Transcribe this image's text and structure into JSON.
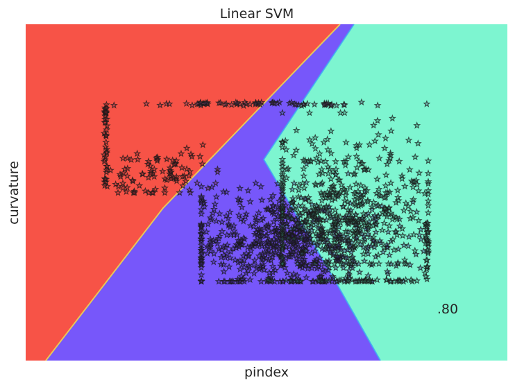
{
  "chart_data": {
    "type": "scatter",
    "title": "Linear SVM",
    "xlabel": "pindex",
    "ylabel": "curvature",
    "annotation": ".80",
    "grid": false,
    "x_ticks_shown": false,
    "y_ticks_shown": false,
    "marker": "star",
    "marker_edge_color": "#1a1a1a",
    "marker_alpha": 0.75,
    "decision_regions": [
      {
        "class": 0,
        "color": "#f75347"
      },
      {
        "class": 1,
        "color": "#7757fa"
      },
      {
        "class": 2,
        "color": "#7df5d0"
      }
    ],
    "boundaries_note": "class 0 / class 1 boundary runs from bottom-left to top-middle; class 1 / class 2 boundary runs from top-middle to bottom-middle",
    "point_groups": [
      {
        "description": "top row at y=1.0",
        "x_range": [
          0.0,
          1.0
        ],
        "y_range": [
          0.99,
          1.01
        ],
        "class": "mixed"
      },
      {
        "description": "left edge column",
        "x_range": [
          0.0,
          0.01
        ],
        "y_range": [
          0.52,
          1.0
        ],
        "class": 0
      },
      {
        "description": "left cluster",
        "x_range": [
          0.02,
          0.35
        ],
        "y_range": [
          0.5,
          0.9
        ],
        "class": 0
      },
      {
        "description": "central dense cluster",
        "x_range": [
          0.3,
          1.0
        ],
        "y_range": [
          0.0,
          0.75
        ],
        "class": 1
      },
      {
        "description": "right cluster",
        "x_range": [
          0.55,
          1.0
        ],
        "y_range": [
          0.1,
          0.95
        ],
        "class": 2
      },
      {
        "description": "bottom edge row",
        "x_range": [
          0.5,
          1.0
        ],
        "y_range": [
          0.0,
          0.01
        ],
        "class": 2
      },
      {
        "description": "right edge column",
        "x_range": [
          0.99,
          1.0
        ],
        "y_range": [
          0.0,
          0.35
        ],
        "class": 2
      }
    ]
  }
}
